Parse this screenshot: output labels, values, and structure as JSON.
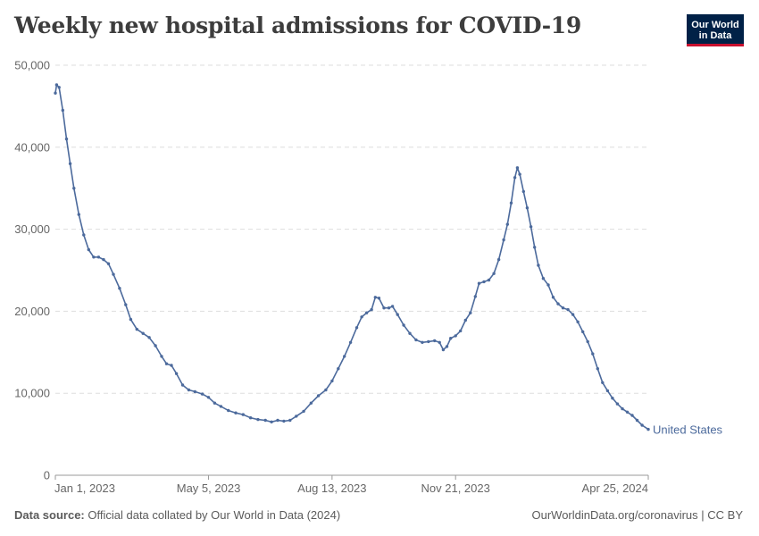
{
  "header": {
    "title": "Weekly new hospital admissions for COVID-19",
    "logo_line1": "Our World",
    "logo_line2": "in Data"
  },
  "footer": {
    "source_label": "Data source:",
    "source_text": "Official data collated by Our World in Data (2024)",
    "url_text": "OurWorldinData.org/coronavirus | CC BY"
  },
  "colors": {
    "series": "#4c6a9c",
    "grid": "#dddddd",
    "axis": "#666666",
    "logo_bg": "#002147",
    "logo_accent": "#c8102e"
  },
  "chart_data": {
    "type": "line",
    "title": "Weekly new hospital admissions for COVID-19",
    "xlabel": "",
    "ylabel": "",
    "ylim": [
      0,
      50000
    ],
    "y_ticks": [
      0,
      10000,
      20000,
      30000,
      40000,
      50000
    ],
    "y_tick_labels": [
      "0",
      "10,000",
      "20,000",
      "30,000",
      "40,000",
      "50,000"
    ],
    "x_ticks": [
      "2023-01-01",
      "2023-05-05",
      "2023-08-13",
      "2023-11-21",
      "2024-04-25"
    ],
    "x_tick_labels": [
      "Jan 1, 2023",
      "May 5, 2023",
      "Aug 13, 2023",
      "Nov 21, 2023",
      "Apr 25, 2024"
    ],
    "xlim": [
      "2023-01-01",
      "2024-04-25"
    ],
    "grid": "horizontal dashed",
    "legend": "end-of-line label",
    "series": [
      {
        "name": "United States",
        "color": "#4c6a9c",
        "points": [
          [
            "2023-01-01",
            46600
          ],
          [
            "2023-01-02",
            47600
          ],
          [
            "2023-01-04",
            47300
          ],
          [
            "2023-01-07",
            44500
          ],
          [
            "2023-01-10",
            41000
          ],
          [
            "2023-01-13",
            38000
          ],
          [
            "2023-01-16",
            35000
          ],
          [
            "2023-01-20",
            31800
          ],
          [
            "2023-01-24",
            29300
          ],
          [
            "2023-01-28",
            27500
          ],
          [
            "2023-02-01",
            26600
          ],
          [
            "2023-02-05",
            26600
          ],
          [
            "2023-02-09",
            26300
          ],
          [
            "2023-02-13",
            25800
          ],
          [
            "2023-02-17",
            24500
          ],
          [
            "2023-02-22",
            22800
          ],
          [
            "2023-02-27",
            20800
          ],
          [
            "2023-03-03",
            19000
          ],
          [
            "2023-03-08",
            17800
          ],
          [
            "2023-03-13",
            17300
          ],
          [
            "2023-03-18",
            16800
          ],
          [
            "2023-03-23",
            15800
          ],
          [
            "2023-03-28",
            14500
          ],
          [
            "2023-04-01",
            13600
          ],
          [
            "2023-04-05",
            13400
          ],
          [
            "2023-04-09",
            12400
          ],
          [
            "2023-04-14",
            11000
          ],
          [
            "2023-04-19",
            10400
          ],
          [
            "2023-04-24",
            10200
          ],
          [
            "2023-04-30",
            9900
          ],
          [
            "2023-05-05",
            9500
          ],
          [
            "2023-05-10",
            8800
          ],
          [
            "2023-05-15",
            8400
          ],
          [
            "2023-05-21",
            7900
          ],
          [
            "2023-05-27",
            7600
          ],
          [
            "2023-06-02",
            7400
          ],
          [
            "2023-06-08",
            7000
          ],
          [
            "2023-06-14",
            6800
          ],
          [
            "2023-06-20",
            6700
          ],
          [
            "2023-06-25",
            6500
          ],
          [
            "2023-06-30",
            6700
          ],
          [
            "2023-07-05",
            6600
          ],
          [
            "2023-07-10",
            6700
          ],
          [
            "2023-07-15",
            7200
          ],
          [
            "2023-07-21",
            7800
          ],
          [
            "2023-07-27",
            8800
          ],
          [
            "2023-08-02",
            9700
          ],
          [
            "2023-08-08",
            10400
          ],
          [
            "2023-08-13",
            11500
          ],
          [
            "2023-08-18",
            13000
          ],
          [
            "2023-08-23",
            14500
          ],
          [
            "2023-08-28",
            16200
          ],
          [
            "2023-09-02",
            18000
          ],
          [
            "2023-09-06",
            19300
          ],
          [
            "2023-09-10",
            19800
          ],
          [
            "2023-09-14",
            20200
          ],
          [
            "2023-09-17",
            21700
          ],
          [
            "2023-09-20",
            21600
          ],
          [
            "2023-09-24",
            20400
          ],
          [
            "2023-09-28",
            20400
          ],
          [
            "2023-10-01",
            20600
          ],
          [
            "2023-10-05",
            19600
          ],
          [
            "2023-10-10",
            18300
          ],
          [
            "2023-10-15",
            17300
          ],
          [
            "2023-10-20",
            16500
          ],
          [
            "2023-10-25",
            16200
          ],
          [
            "2023-10-30",
            16300
          ],
          [
            "2023-11-04",
            16400
          ],
          [
            "2023-11-08",
            16200
          ],
          [
            "2023-11-11",
            15300
          ],
          [
            "2023-11-14",
            15700
          ],
          [
            "2023-11-17",
            16700
          ],
          [
            "2023-11-21",
            17000
          ],
          [
            "2023-11-25",
            17600
          ],
          [
            "2023-11-29",
            18900
          ],
          [
            "2023-12-03",
            19800
          ],
          [
            "2023-12-07",
            21800
          ],
          [
            "2023-12-10",
            23400
          ],
          [
            "2023-12-14",
            23600
          ],
          [
            "2023-12-18",
            23800
          ],
          [
            "2023-12-22",
            24600
          ],
          [
            "2023-12-26",
            26300
          ],
          [
            "2023-12-30",
            28700
          ],
          [
            "2024-01-02",
            30600
          ],
          [
            "2024-01-05",
            33200
          ],
          [
            "2024-01-08",
            36300
          ],
          [
            "2024-01-10",
            37500
          ],
          [
            "2024-01-12",
            36700
          ],
          [
            "2024-01-15",
            34600
          ],
          [
            "2024-01-18",
            32600
          ],
          [
            "2024-01-21",
            30300
          ],
          [
            "2024-01-24",
            27800
          ],
          [
            "2024-01-27",
            25600
          ],
          [
            "2024-01-31",
            24000
          ],
          [
            "2024-02-04",
            23200
          ],
          [
            "2024-02-08",
            21700
          ],
          [
            "2024-02-12",
            20900
          ],
          [
            "2024-02-16",
            20400
          ],
          [
            "2024-02-20",
            20200
          ],
          [
            "2024-02-24",
            19600
          ],
          [
            "2024-02-28",
            18700
          ],
          [
            "2024-03-03",
            17500
          ],
          [
            "2024-03-07",
            16300
          ],
          [
            "2024-03-11",
            14800
          ],
          [
            "2024-03-15",
            13000
          ],
          [
            "2024-03-19",
            11300
          ],
          [
            "2024-03-23",
            10300
          ],
          [
            "2024-03-27",
            9400
          ],
          [
            "2024-03-31",
            8700
          ],
          [
            "2024-04-04",
            8100
          ],
          [
            "2024-04-08",
            7700
          ],
          [
            "2024-04-12",
            7300
          ],
          [
            "2024-04-16",
            6700
          ],
          [
            "2024-04-20",
            6100
          ],
          [
            "2024-04-25",
            5600
          ]
        ]
      }
    ]
  }
}
